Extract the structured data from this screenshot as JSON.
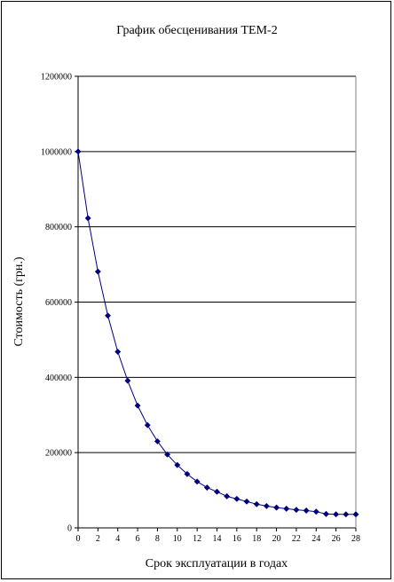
{
  "chart_data": {
    "type": "line",
    "title": "График обесценивания ТЕМ-2",
    "xlabel": "Срок эксплуатации в годах",
    "ylabel": "Стоимость (грн.)",
    "xlim": [
      0,
      28
    ],
    "ylim": [
      0,
      1200000
    ],
    "x_ticks": [
      "0",
      "2",
      "4",
      "6",
      "8",
      "10",
      "12",
      "14",
      "16",
      "18",
      "20",
      "22",
      "24",
      "26",
      "28"
    ],
    "y_ticks": [
      "0",
      "200000",
      "400000",
      "600000",
      "800000",
      "1000000",
      "1200000"
    ],
    "grid": "horizontal",
    "legend": "none",
    "series_color": "#000080",
    "series": [
      {
        "x": [
          0,
          1,
          2,
          3,
          4,
          5,
          6,
          7,
          8,
          9,
          10,
          11,
          12,
          13,
          14,
          15,
          16,
          17,
          18,
          19,
          20,
          21,
          22,
          23,
          24,
          25,
          26,
          27,
          28
        ],
        "values": [
          1000000,
          823000,
          681000,
          564000,
          468000,
          391000,
          325000,
          273000,
          230000,
          195000,
          167000,
          143000,
          123000,
          107000,
          96000,
          84000,
          77000,
          70000,
          63000,
          58000,
          54000,
          51000,
          48000,
          46000,
          43000,
          37000,
          36000,
          36000,
          36000
        ]
      }
    ]
  }
}
